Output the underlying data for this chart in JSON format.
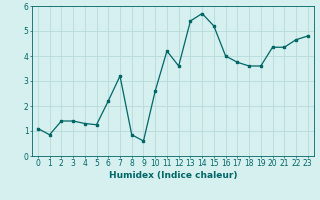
{
  "x": [
    0,
    1,
    2,
    3,
    4,
    5,
    6,
    7,
    8,
    9,
    10,
    11,
    12,
    13,
    14,
    15,
    16,
    17,
    18,
    19,
    20,
    21,
    22,
    23
  ],
  "y": [
    1.1,
    0.85,
    1.4,
    1.4,
    1.3,
    1.25,
    2.2,
    3.2,
    0.85,
    0.6,
    2.6,
    4.2,
    3.6,
    5.4,
    5.7,
    5.2,
    4.0,
    3.75,
    3.6,
    3.6,
    4.35,
    4.35,
    4.65,
    4.8
  ],
  "line_color": "#006666",
  "bg_color": "#d6f0ef",
  "grid_color": "#b8dada",
  "xlabel": "Humidex (Indice chaleur)",
  "ylim": [
    0,
    6
  ],
  "xlim": [
    -0.5,
    23.5
  ],
  "yticks": [
    0,
    1,
    2,
    3,
    4,
    5,
    6
  ],
  "xticks": [
    0,
    1,
    2,
    3,
    4,
    5,
    6,
    7,
    8,
    9,
    10,
    11,
    12,
    13,
    14,
    15,
    16,
    17,
    18,
    19,
    20,
    21,
    22,
    23
  ],
  "tick_label_fontsize": 5.5,
  "xlabel_fontsize": 6.5
}
